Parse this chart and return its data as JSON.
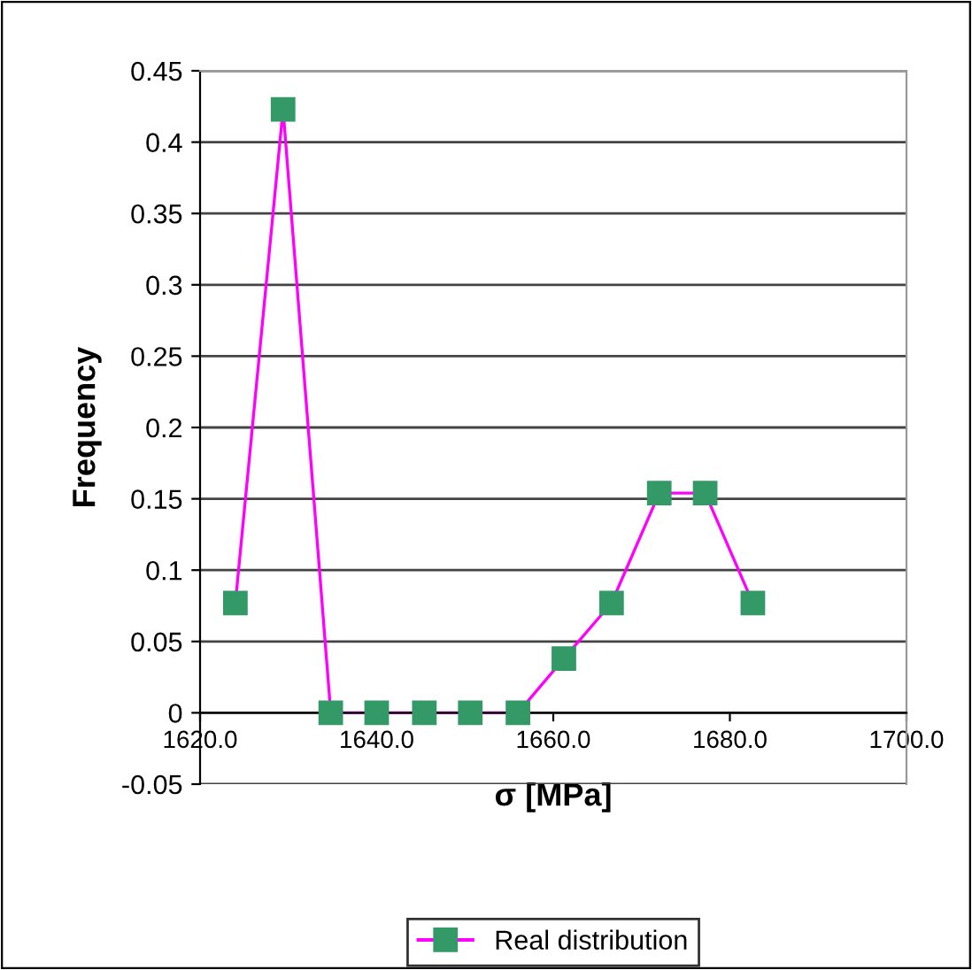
{
  "chart_data": {
    "type": "line",
    "xlabel": "σ [MPa]",
    "ylabel": "Frequency",
    "x": [
      1624.0,
      1629.4,
      1634.8,
      1640.0,
      1645.4,
      1650.6,
      1656.0,
      1661.2,
      1666.6,
      1672.0,
      1677.2,
      1682.6
    ],
    "series": [
      {
        "name": "Real distribution",
        "color": "#ff00ff",
        "colors": [
          "#339966",
          "#339966",
          "#339966",
          "#339966",
          "#339966",
          "#339966",
          "#339966",
          "#339966",
          "#339966",
          "#339966",
          "#339966",
          "#339966"
        ],
        "values": [
          0.077,
          0.423,
          0,
          0,
          0,
          0,
          0,
          0.038,
          0.077,
          0.154,
          0.154,
          0.077
        ]
      }
    ],
    "xlim": [
      1620,
      1700
    ],
    "xticks": [
      {
        "value": 1620,
        "label": "1620.0"
      },
      {
        "value": 1640,
        "label": "1640.0"
      },
      {
        "value": 1660,
        "label": "1660.0"
      },
      {
        "value": 1680,
        "label": "1680.0"
      },
      {
        "value": 1700,
        "label": "1700.0"
      }
    ],
    "ylim": [
      -0.05,
      0.45
    ],
    "yticks": [
      -0.05,
      0,
      0.05,
      0.1,
      0.15,
      0.2,
      0.25,
      0.3,
      0.35,
      0.4,
      0.45
    ],
    "grid": "y",
    "marker": "square",
    "line_style": "solid",
    "legend": "bottom"
  }
}
